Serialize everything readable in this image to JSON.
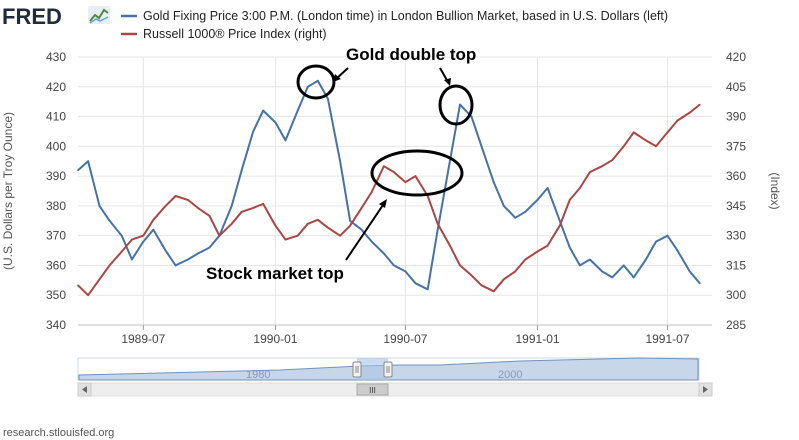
{
  "header": {
    "logo": "FRED",
    "legend": [
      {
        "label": "Gold Fixing Price 3:00 P.M. (London time) in London Bullion Market, based in U.S. Dollars (left)",
        "color": "#4572a7"
      },
      {
        "label": "Russell 1000® Price Index (right)",
        "color": "#aa4643"
      }
    ]
  },
  "footer": {
    "source": "research.stlouisfed.org"
  },
  "navigator": {
    "labels": [
      "1980",
      "2000"
    ],
    "scroll_grip": "III"
  },
  "icons": {
    "logo_chart": "mini-line-chart-icon",
    "scroll_left": "triangle-left-icon",
    "scroll_right": "triangle-right-icon",
    "handle": "drag-handle-icon"
  },
  "chart_data": {
    "type": "line",
    "y_left": {
      "label": "(U.S. Dollars per Troy Ounce)",
      "ticks": [
        340,
        350,
        360,
        370,
        380,
        390,
        400,
        410,
        420,
        430
      ],
      "range": [
        340,
        430
      ]
    },
    "y_right": {
      "label": "(Index)",
      "ticks": [
        285,
        300,
        315,
        330,
        345,
        360,
        375,
        390,
        405,
        420
      ],
      "range": [
        285,
        420
      ]
    },
    "x_ticks": [
      "1989-07",
      "1990-01",
      "1990-07",
      "1991-01",
      "1991-07"
    ],
    "grid": true,
    "legend_position": "top",
    "series": [
      {
        "name": "Gold Fixing Price 3:00 P.M. (London time) in London Bullion Market, based in U.S. Dollars (left)",
        "axis": "left",
        "color": "#4572a7",
        "x": [
          "1989-04-01",
          "1989-04-15",
          "1989-05-01",
          "1989-05-15",
          "1989-06-01",
          "1989-06-15",
          "1989-07-01",
          "1989-07-15",
          "1989-08-01",
          "1989-08-15",
          "1989-09-01",
          "1989-09-15",
          "1989-10-01",
          "1989-10-15",
          "1989-11-01",
          "1989-11-15",
          "1989-12-01",
          "1989-12-15",
          "1990-01-01",
          "1990-01-15",
          "1990-02-01",
          "1990-02-15",
          "1990-03-01",
          "1990-03-15",
          "1990-04-01",
          "1990-04-15",
          "1990-05-01",
          "1990-05-15",
          "1990-06-01",
          "1990-06-15",
          "1990-07-01",
          "1990-07-15",
          "1990-08-01",
          "1990-08-15",
          "1990-09-01",
          "1990-09-15",
          "1990-10-01",
          "1990-10-15",
          "1990-11-01",
          "1990-11-15",
          "1990-12-01",
          "1990-12-15",
          "1991-01-01",
          "1991-01-15",
          "1991-02-01",
          "1991-02-15",
          "1991-03-01",
          "1991-03-15",
          "1991-04-01",
          "1991-04-15",
          "1991-05-01",
          "1991-05-15",
          "1991-06-01",
          "1991-06-15",
          "1991-07-01",
          "1991-07-15",
          "1991-08-01",
          "1991-08-15"
        ],
        "values": [
          392,
          395,
          380,
          375,
          370,
          362,
          368,
          372,
          365,
          360,
          362,
          364,
          366,
          370,
          380,
          392,
          405,
          412,
          408,
          402,
          412,
          420,
          422,
          416,
          395,
          375,
          372,
          368,
          364,
          360,
          358,
          354,
          352,
          372,
          395,
          414,
          410,
          400,
          388,
          380,
          376,
          378,
          382,
          386,
          375,
          366,
          360,
          362,
          358,
          356,
          360,
          356,
          362,
          368,
          370,
          365,
          358,
          354
        ]
      },
      {
        "name": "Russell 1000® Price Index (right)",
        "axis": "right",
        "color": "#aa4643",
        "x": [
          "1989-04-01",
          "1989-04-15",
          "1989-05-01",
          "1989-05-15",
          "1989-06-01",
          "1989-06-15",
          "1989-07-01",
          "1989-07-15",
          "1989-08-01",
          "1989-08-15",
          "1989-09-01",
          "1989-09-15",
          "1989-10-01",
          "1989-10-15",
          "1989-11-01",
          "1989-11-15",
          "1989-12-01",
          "1989-12-15",
          "1990-01-01",
          "1990-01-15",
          "1990-02-01",
          "1990-02-15",
          "1990-03-01",
          "1990-03-15",
          "1990-04-01",
          "1990-04-15",
          "1990-05-01",
          "1990-05-15",
          "1990-06-01",
          "1990-06-15",
          "1990-07-01",
          "1990-07-15",
          "1990-08-01",
          "1990-08-15",
          "1990-09-01",
          "1990-09-15",
          "1990-10-01",
          "1990-10-15",
          "1990-11-01",
          "1990-11-15",
          "1990-12-01",
          "1990-12-15",
          "1991-01-01",
          "1991-01-15",
          "1991-02-01",
          "1991-02-15",
          "1991-03-01",
          "1991-03-15",
          "1991-04-01",
          "1991-04-15",
          "1991-05-01",
          "1991-05-15",
          "1991-06-01",
          "1991-06-15",
          "1991-07-01",
          "1991-07-15",
          "1991-08-01",
          "1991-08-15"
        ],
        "values": [
          305,
          300,
          308,
          315,
          322,
          328,
          330,
          338,
          345,
          350,
          348,
          344,
          340,
          330,
          336,
          342,
          344,
          346,
          335,
          328,
          330,
          336,
          338,
          334,
          330,
          335,
          344,
          352,
          365,
          362,
          357,
          360,
          350,
          336,
          325,
          315,
          310,
          305,
          302,
          308,
          312,
          318,
          322,
          325,
          335,
          348,
          354,
          362,
          365,
          368,
          375,
          382,
          378,
          375,
          382,
          388,
          392,
          396
        ]
      }
    ],
    "annotations": [
      {
        "text": "Gold double top"
      },
      {
        "text": "Stock market top"
      }
    ]
  }
}
